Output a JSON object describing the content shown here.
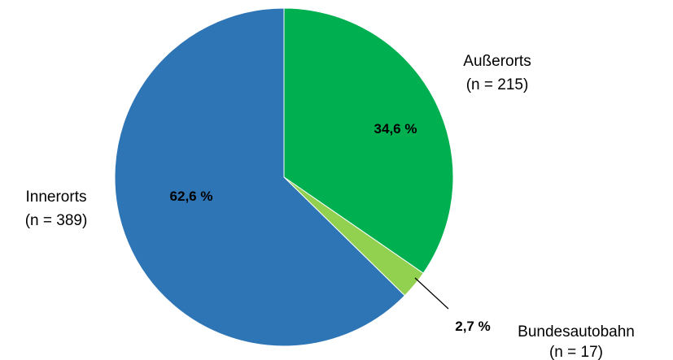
{
  "chart_data": {
    "type": "pie",
    "title": "",
    "slices": [
      {
        "name": "Außerorts",
        "n_label": "(n = 215)",
        "count": 215,
        "percent": 34.6,
        "percent_label": "34,6 %",
        "color": "#00b050"
      },
      {
        "name": "Bundesautobahn",
        "n_label": "(n = 17)",
        "count": 17,
        "percent": 2.7,
        "percent_label": "2,7 %",
        "color": "#92d050"
      },
      {
        "name": "Innerorts",
        "n_label": "(n = 389)",
        "count": 389,
        "percent": 62.6,
        "percent_label": "62,6 %",
        "color": "#2e75b6"
      }
    ],
    "start_angle": "12 o'clock",
    "direction": "clockwise"
  }
}
